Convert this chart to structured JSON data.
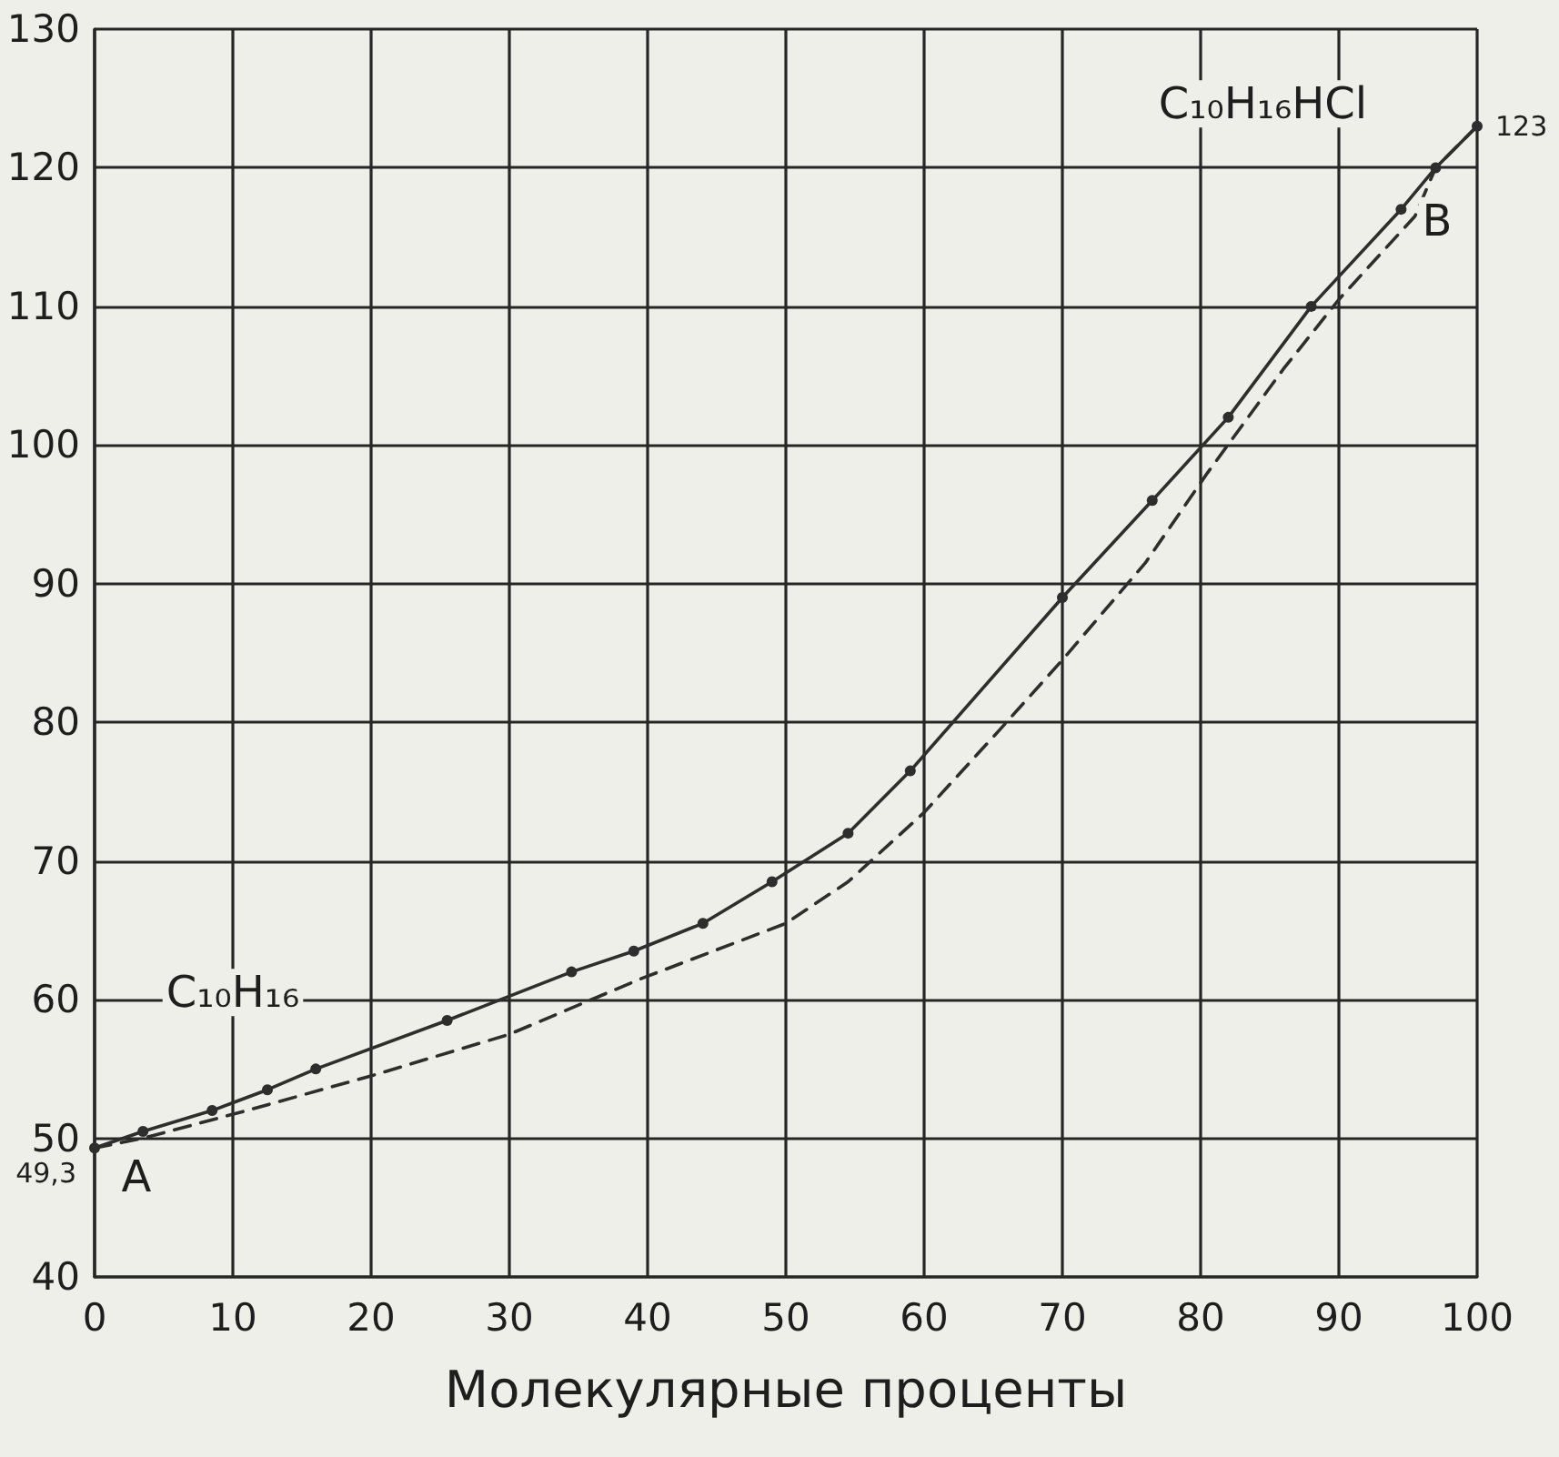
{
  "chart_data": {
    "type": "line",
    "xlabel": "Молекулярные проценты",
    "series": [
      {
        "x": [
          0,
          3.5,
          8.5,
          12.5,
          16,
          25.5,
          34.5,
          39,
          44,
          49,
          54.5,
          59,
          70,
          76.5,
          82,
          88,
          94.5,
          97,
          100
        ],
        "color": "#2e2e2e",
        "marker": "circle",
        "line_style": "solid",
        "values": [
          49.3,
          50.5,
          52,
          53.5,
          55,
          58.5,
          62,
          63.5,
          65.5,
          68.5,
          72,
          76.5,
          89,
          96,
          102,
          110,
          117,
          120,
          123
        ],
        "value_labels": [
          "49,3",
          null,
          null,
          null,
          null,
          null,
          null,
          null,
          null,
          null,
          null,
          null,
          null,
          null,
          null,
          null,
          null,
          null,
          "123"
        ]
      },
      {
        "x": [
          0,
          3.5,
          11,
          20,
          30,
          39.5,
          50,
          54.5,
          60,
          65.5,
          70,
          76,
          80.5,
          86,
          90,
          95.5,
          97,
          100
        ],
        "color": "#2e2e2e",
        "marker": "none",
        "line_style": "dashed",
        "values": [
          49.3,
          50,
          52,
          54.5,
          57.5,
          61.5,
          65.5,
          68.5,
          73.5,
          79.5,
          84.5,
          91.5,
          98,
          105.5,
          110.5,
          116.5,
          120,
          123
        ]
      }
    ],
    "xlim": [
      0,
      100
    ],
    "xticks": [
      0,
      10,
      20,
      30,
      40,
      50,
      60,
      70,
      80,
      90,
      100
    ],
    "ylim": [
      40,
      130
    ],
    "yticks": [
      40,
      50,
      60,
      70,
      80,
      90,
      100,
      110,
      120,
      130
    ],
    "grid": true,
    "annotations": [
      "C₁₀H₁₆",
      "C₁₀H₁₆HCl",
      {
        "text": "A",
        "x": 0,
        "y": 49.3
      },
      {
        "text": "B",
        "x": 100,
        "y": 123
      }
    ]
  }
}
